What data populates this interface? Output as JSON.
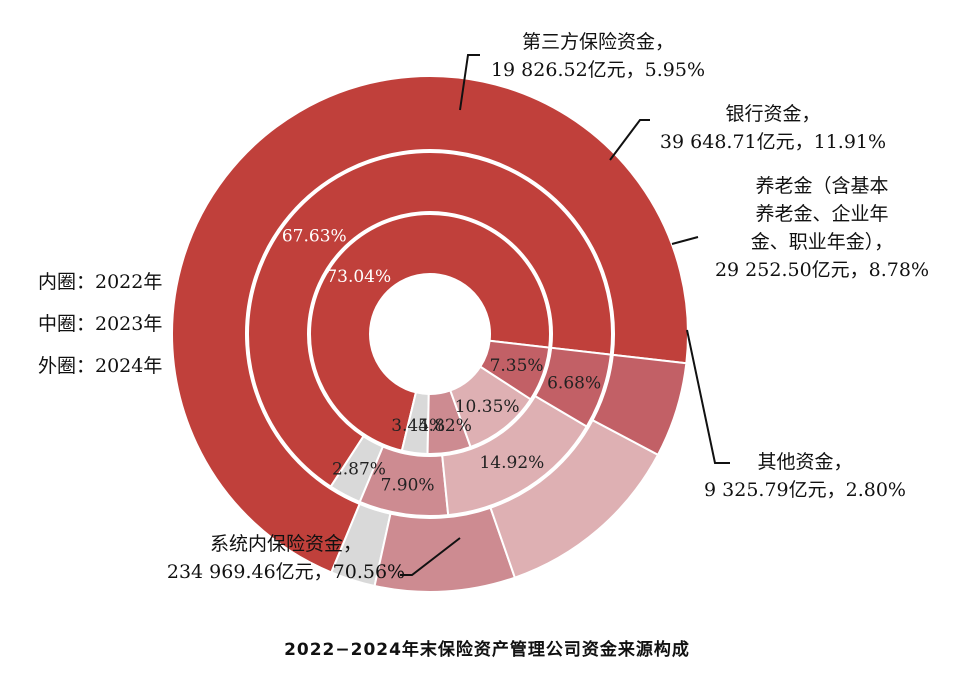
{
  "chart_data": {
    "type": "pie",
    "subtype": "nested-donut",
    "caption": "2022−2024年末保险资产管理公司资金来源构成",
    "legend": [
      "内圈：2022年",
      "中圈：2023年",
      "外圈：2024年"
    ],
    "categories": [
      "系统内保险资金",
      "其他资金",
      "养老金",
      "银行资金",
      "第三方保险资金"
    ],
    "colors": {
      "系统内保险资金": "#c0403b",
      "其他资金": "#d9d9d9",
      "养老金": "#cd8b91",
      "银行资金": "#deb0b3",
      "第三方保险资金": "#c26066"
    },
    "series": [
      {
        "name": "2024年",
        "ring": "outer",
        "values": [
          70.56,
          2.8,
          8.78,
          11.91,
          5.95
        ],
        "labels": {
          "系统内保险资金": [
            "系统内保险资金，",
            "234 969.46亿元，70.56%"
          ],
          "其他资金": [
            "其他资金，",
            "9 325.79亿元，2.80%"
          ],
          "养老金": [
            "养老金（含基本",
            "养老金、企业年",
            "金、职业年金），",
            "29 252.50亿元，8.78%"
          ],
          "银行资金": [
            "银行资金，",
            "39 648.71亿元，11.91%"
          ],
          "第三方保险资金": [
            "第三方保险资金，",
            "19 826.52亿元，5.95%"
          ]
        }
      },
      {
        "name": "2023年",
        "ring": "middle",
        "values": [
          67.63,
          2.87,
          7.9,
          14.92,
          6.68
        ],
        "labels": [
          "67.63%",
          "2.87%",
          "7.90%",
          "14.92%",
          "6.68%"
        ]
      },
      {
        "name": "2022年",
        "ring": "inner",
        "values": [
          73.04,
          3.44,
          5.82,
          10.35,
          7.35
        ],
        "labels": [
          "73.04%",
          "3.44%",
          "5.82%",
          "10.35%",
          "7.35%"
        ]
      }
    ]
  }
}
